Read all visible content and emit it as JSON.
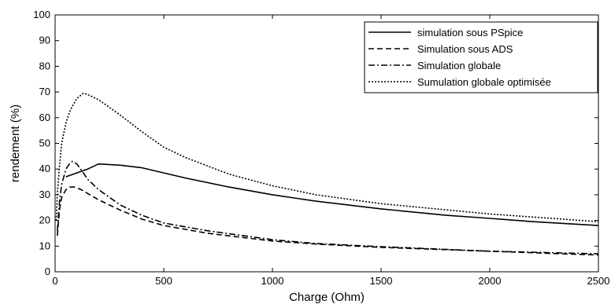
{
  "chart_data": {
    "type": "line",
    "title": "",
    "xlabel": "Charge (Ohm)",
    "ylabel": "rendement (%)",
    "xlim": [
      0,
      2500
    ],
    "ylim": [
      0,
      100
    ],
    "xticks": [
      0,
      500,
      1000,
      1500,
      2000,
      2500
    ],
    "yticks": [
      0,
      10,
      20,
      30,
      40,
      50,
      60,
      70,
      80,
      90,
      100
    ],
    "grid": false,
    "legend_position": "top-right",
    "series": [
      {
        "name": "simulation sous PSpice",
        "style": "solid",
        "x": [
          50,
          100,
          150,
          200,
          300,
          400,
          500,
          600,
          800,
          1000,
          1200,
          1500,
          1800,
          2000,
          2200,
          2500
        ],
        "y": [
          37,
          38.5,
          40,
          42,
          41.5,
          40.5,
          38.5,
          36.5,
          33,
          30,
          27.5,
          24.5,
          22,
          20.8,
          19.5,
          18
        ]
      },
      {
        "name": "Simulation sous ADS",
        "style": "dashed",
        "x": [
          10,
          20,
          30,
          50,
          70,
          90,
          120,
          150,
          200,
          300,
          400,
          500,
          700,
          1000,
          1200,
          1500,
          2000,
          2500
        ],
        "y": [
          14,
          24,
          29,
          32,
          33,
          33,
          32,
          30.5,
          28,
          24,
          20.5,
          18,
          15,
          12,
          10.8,
          9.5,
          8,
          6.5
        ]
      },
      {
        "name": "Simulation globale",
        "style": "dashdot",
        "x": [
          10,
          20,
          30,
          50,
          70,
          80,
          100,
          130,
          150,
          200,
          250,
          300,
          400,
          500,
          700,
          1000,
          1200,
          1500,
          2000,
          2500
        ],
        "y": [
          16,
          27,
          34,
          40,
          42.5,
          43,
          42,
          38.5,
          36,
          32,
          29,
          26,
          22,
          19,
          16,
          12.5,
          11,
          9.8,
          8,
          7
        ]
      },
      {
        "name": "Sumulation globale optimisée",
        "style": "dotted",
        "x": [
          5,
          10,
          20,
          30,
          50,
          70,
          100,
          130,
          150,
          200,
          300,
          400,
          500,
          600,
          800,
          1000,
          1200,
          1500,
          2000,
          2500
        ],
        "y": [
          20,
          30,
          41,
          50,
          58,
          63,
          67.5,
          69.5,
          69,
          67,
          61,
          54.5,
          48.5,
          44.5,
          38,
          33.5,
          30,
          26.5,
          22.5,
          19.5
        ]
      }
    ]
  }
}
